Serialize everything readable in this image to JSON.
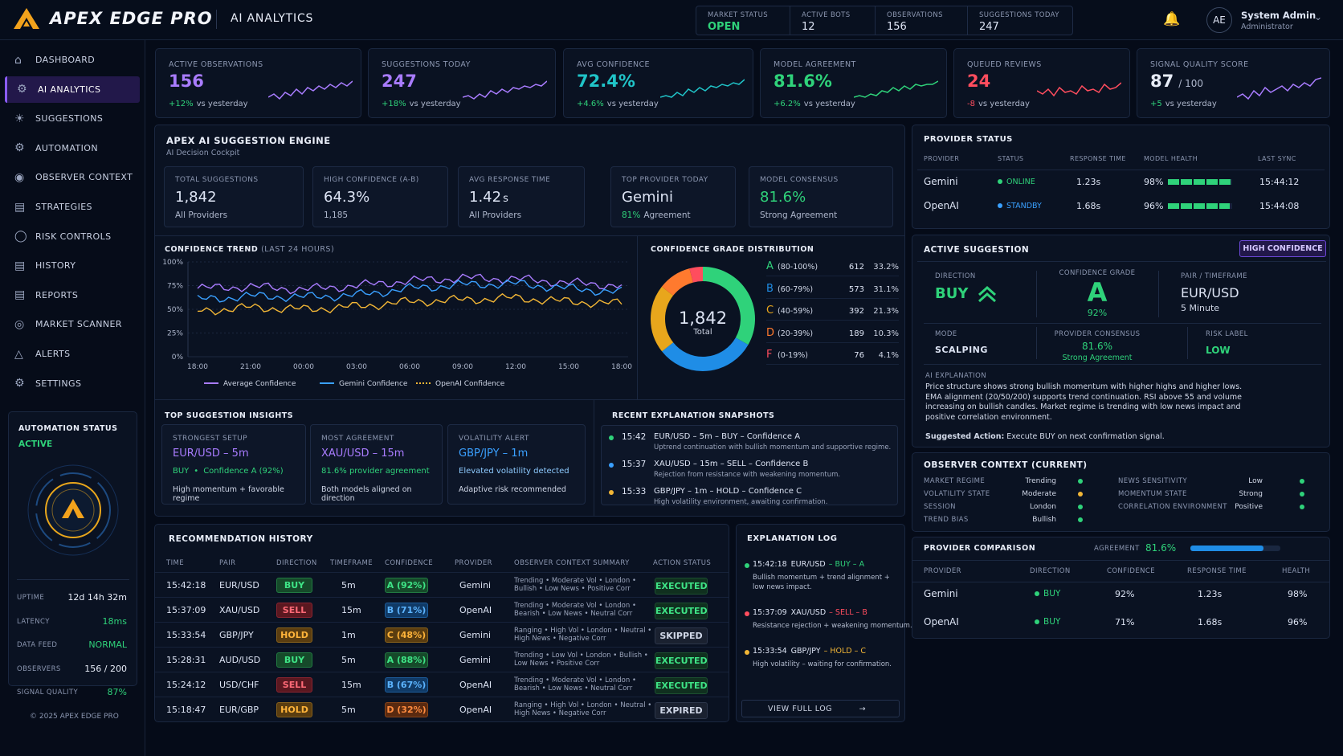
{
  "app": {
    "brand": "APEX EDGE PRO",
    "section": "AI ANALYTICS"
  },
  "topstats": [
    {
      "label": "MARKET STATUS",
      "value": "OPEN"
    },
    {
      "label": "ACTIVE BOTS",
      "value": "12"
    },
    {
      "label": "OBSERVATIONS",
      "value": "156"
    },
    {
      "label": "SUGGESTIONS TODAY",
      "value": "247"
    }
  ],
  "user": {
    "initials": "AE",
    "name": "System Admin",
    "role": "Administrator"
  },
  "nav": [
    {
      "label": "DASHBOARD",
      "icon": "home-icon"
    },
    {
      "label": "AI ANALYTICS",
      "icon": "brain-icon"
    },
    {
      "label": "SUGGESTIONS",
      "icon": "lightbulb-icon"
    },
    {
      "label": "AUTOMATION",
      "icon": "gear-icon"
    },
    {
      "label": "OBSERVER CONTEXT",
      "icon": "observer-icon"
    },
    {
      "label": "STRATEGIES",
      "icon": "chart-icon"
    },
    {
      "label": "RISK CONTROLS",
      "icon": "shield-icon"
    },
    {
      "label": "HISTORY",
      "icon": "history-icon"
    },
    {
      "label": "REPORTS",
      "icon": "report-icon"
    },
    {
      "label": "MARKET SCANNER",
      "icon": "scanner-icon"
    },
    {
      "label": "ALERTS",
      "icon": "bell-icon"
    },
    {
      "label": "SETTINGS",
      "icon": "settings-icon"
    }
  ],
  "automation": {
    "title": "AUTOMATION STATUS",
    "state": "ACTIVE",
    "rows": [
      {
        "label": "UPTIME",
        "value": "12d 14h 32m"
      },
      {
        "label": "LATENCY",
        "value": "18ms"
      },
      {
        "label": "DATA FEED",
        "value": "NORMAL"
      },
      {
        "label": "OBSERVERS",
        "value": "156 / 200"
      },
      {
        "label": "SIGNAL QUALITY",
        "value": "87%"
      }
    ]
  },
  "copyright": "© 2025 APEX EDGE PRO",
  "kpis": [
    {
      "label": "ACTIVE OBSERVATIONS",
      "value": "156",
      "delta": "+12%",
      "note": "vs yesterday",
      "color": "#a97cff"
    },
    {
      "label": "SUGGESTIONS TODAY",
      "value": "247",
      "delta": "+18%",
      "note": "vs yesterday",
      "color": "#a97cff"
    },
    {
      "label": "AVG CONFIDENCE",
      "value": "72.4%",
      "delta": "+4.6%",
      "note": "vs yesterday",
      "color": "#20c4c8"
    },
    {
      "label": "MODEL AGREEMENT",
      "value": "81.6%",
      "delta": "+6.2%",
      "note": "vs yesterday",
      "color": "#2fd27a"
    },
    {
      "label": "QUEUED REVIEWS",
      "value": "24",
      "delta": "-8",
      "note": "vs yesterday",
      "color": "#ff4d5e"
    },
    {
      "label": "SIGNAL QUALITY SCORE",
      "value": "87",
      "suffix": "/ 100",
      "delta": "+5",
      "note": "vs yesterday",
      "color": "#a97cff"
    }
  ],
  "engine": {
    "title": "APEX AI SUGGESTION ENGINE",
    "subtitle": "AI Decision Cockpit",
    "cards": [
      {
        "label": "TOTAL SUGGESTIONS",
        "value": "1,842",
        "sub": "All Providers"
      },
      {
        "label": "HIGH CONFIDENCE (A-B)",
        "value": "64.3%",
        "sub": "1,185"
      },
      {
        "label": "AVG RESPONSE TIME",
        "value": "1.42",
        "unit": "s",
        "sub": "All Providers"
      },
      {
        "label": "TOP PROVIDER TODAY",
        "value": "Gemini",
        "subA": "81%",
        "subB": "Agreement"
      },
      {
        "label": "MODEL CONSENSUS",
        "value": "81.6%",
        "sub": "Strong Agreement"
      }
    ]
  },
  "trend": {
    "title": "CONFIDENCE TREND",
    "range": "(LAST 24 HOURS)",
    "yticks": [
      "100%",
      "75%",
      "50%",
      "25%",
      "0%"
    ],
    "xticks": [
      "18:00",
      "21:00",
      "00:00",
      "03:00",
      "06:00",
      "09:00",
      "12:00",
      "15:00",
      "18:00"
    ],
    "legend": [
      "Average Confidence",
      "Gemini Confidence",
      "OpenAI Confidence"
    ]
  },
  "chart_data": {
    "type": "line",
    "ylim": [
      0,
      100
    ],
    "x": [
      "18:00",
      "21:00",
      "00:00",
      "03:00",
      "06:00",
      "09:00",
      "12:00",
      "15:00",
      "18:00"
    ],
    "series": [
      {
        "name": "Average Confidence",
        "color": "#a97cff",
        "values": [
          72,
          74,
          71,
          75,
          80,
          83,
          82,
          78,
          75
        ]
      },
      {
        "name": "Gemini Confidence",
        "color": "#3aa0ff",
        "values": [
          60,
          64,
          63,
          65,
          72,
          76,
          77,
          72,
          68
        ]
      },
      {
        "name": "OpenAI Confidence",
        "color": "#f2b636",
        "values": [
          48,
          52,
          50,
          53,
          58,
          60,
          62,
          58,
          56
        ]
      }
    ]
  },
  "grades": {
    "title": "CONFIDENCE GRADE DISTRIBUTION",
    "total": "1,842",
    "total_label": "Total",
    "items": [
      {
        "grade": "A",
        "range": "(80-100%)",
        "count": "612",
        "pct": "33.2%",
        "color": "#2fd27a",
        "value": 612
      },
      {
        "grade": "B",
        "range": "(60-79%)",
        "count": "573",
        "pct": "31.1%",
        "color": "#1f8de6",
        "value": 573
      },
      {
        "grade": "C",
        "range": "(40-59%)",
        "count": "392",
        "pct": "21.3%",
        "color": "#e8a61c",
        "value": 392
      },
      {
        "grade": "D",
        "range": "(20-39%)",
        "count": "189",
        "pct": "10.3%",
        "color": "#ff7a2e",
        "value": 189
      },
      {
        "grade": "F",
        "range": "(0-19%)",
        "count": "76",
        "pct": "4.1%",
        "color": "#ff4d5e",
        "value": 76
      }
    ]
  },
  "insights": {
    "title": "TOP SUGGESTION INSIGHTS",
    "cards": [
      {
        "label": "STRONGEST SETUP",
        "head": "EUR/USD – 5m",
        "l1a": "BUY",
        "l1b": "Confidence A (92%)",
        "l2": "High momentum + favorable regime"
      },
      {
        "label": "MOST AGREEMENT",
        "head": "XAU/USD – 15m",
        "l1": "81.6% provider agreement",
        "l2": "Both models aligned on direction"
      },
      {
        "label": "VOLATILITY ALERT",
        "head": "GBP/JPY – 1m",
        "l1": "Elevated volatility detected",
        "l2": "Adaptive risk recommended"
      }
    ]
  },
  "snapshots": {
    "title": "RECENT EXPLANATION SNAPSHOTS",
    "items": [
      {
        "time": "15:42",
        "head": "EUR/USD – 5m – BUY – Confidence A",
        "desc": "Uptrend continuation with bullish momentum and supportive regime.",
        "color": "#2fd27a"
      },
      {
        "time": "15:37",
        "head": "XAU/USD – 15m – SELL – Confidence B",
        "desc": "Rejection from resistance with weakening momentum.",
        "color": "#3aa0ff"
      },
      {
        "time": "15:33",
        "head": "GBP/JPY – 1m – HOLD – Confidence C",
        "desc": "High volatility environment, awaiting confirmation.",
        "color": "#f2b636"
      }
    ]
  },
  "history": {
    "title": "RECOMMENDATION HISTORY",
    "columns": [
      "TIME",
      "PAIR",
      "DIRECTION",
      "TIMEFRAME",
      "CONFIDENCE",
      "PROVIDER",
      "OBSERVER CONTEXT SUMMARY",
      "ACTION STATUS"
    ],
    "rows": [
      {
        "time": "15:42:18",
        "pair": "EUR/USD",
        "dir": "BUY",
        "tf": "5m",
        "conf": "A (92%)",
        "cc": "c-a",
        "prov": "Gemini",
        "c1": "Trending • Moderate Vol • London •",
        "c2": "Bullish • Low News • Positive Corr",
        "status": "EXECUTED"
      },
      {
        "time": "15:37:09",
        "pair": "XAU/USD",
        "dir": "SELL",
        "tf": "15m",
        "conf": "B (71%)",
        "cc": "c-b",
        "prov": "OpenAI",
        "c1": "Trending • Moderate Vol • London •",
        "c2": "Bearish • Low News • Neutral Corr",
        "status": "EXECUTED"
      },
      {
        "time": "15:33:54",
        "pair": "GBP/JPY",
        "dir": "HOLD",
        "tf": "1m",
        "conf": "C (48%)",
        "cc": "c-c",
        "prov": "Gemini",
        "c1": "Ranging • High Vol • London • Neutral •",
        "c2": "High News • Negative Corr",
        "status": "SKIPPED"
      },
      {
        "time": "15:28:31",
        "pair": "AUD/USD",
        "dir": "BUY",
        "tf": "5m",
        "conf": "A (88%)",
        "cc": "c-a",
        "prov": "Gemini",
        "c1": "Trending • Low Vol • London • Bullish •",
        "c2": "Low News • Positive Corr",
        "status": "EXECUTED"
      },
      {
        "time": "15:24:12",
        "pair": "USD/CHF",
        "dir": "SELL",
        "tf": "15m",
        "conf": "B (67%)",
        "cc": "c-b",
        "prov": "OpenAI",
        "c1": "Trending • Moderate Vol • London •",
        "c2": "Bearish • Low News • Neutral Corr",
        "status": "EXECUTED"
      },
      {
        "time": "15:18:47",
        "pair": "EUR/GBP",
        "dir": "HOLD",
        "tf": "5m",
        "conf": "D (32%)",
        "cc": "c-d",
        "prov": "OpenAI",
        "c1": "Ranging • High Vol • London • Neutral •",
        "c2": "High News • Negative Corr",
        "status": "EXPIRED"
      }
    ]
  },
  "log": {
    "title": "EXPLANATION LOG",
    "button": "VIEW FULL LOG",
    "items": [
      {
        "time": "15:42:18",
        "pair": "EUR/USD",
        "act": "– BUY – A",
        "l1": "Bullish momentum + trend alignment +",
        "l2": "low news impact.",
        "color": "#2fd27a"
      },
      {
        "time": "15:37:09",
        "pair": "XAU/USD",
        "act": "– SELL – B",
        "l1": "Resistance rejection + weakening momentum.",
        "l2": "",
        "color": "#ff4d5e"
      },
      {
        "time": "15:33:54",
        "pair": "GBP/JPY",
        "act": "– HOLD – C",
        "l1": "High volatility – waiting for confirmation.",
        "l2": "",
        "color": "#f2b636"
      }
    ]
  },
  "provider_status": {
    "title": "PROVIDER STATUS",
    "columns": [
      "PROVIDER",
      "STATUS",
      "RESPONSE TIME",
      "MODEL HEALTH",
      "LAST SYNC"
    ],
    "rows": [
      {
        "name": "Gemini",
        "status": "ONLINE",
        "resp": "1.23s",
        "health": "98%",
        "health_value": 98,
        "sync": "15:44:12",
        "color": "#2fd27a"
      },
      {
        "name": "OpenAI",
        "status": "STANDBY",
        "resp": "1.68s",
        "health": "96%",
        "health_value": 96,
        "sync": "15:44:08",
        "color": "#3aa0ff"
      }
    ]
  },
  "active": {
    "title": "ACTIVE SUGGESTION",
    "badge": "HIGH CONFIDENCE",
    "direction_label": "DIRECTION",
    "direction": "BUY",
    "grade_label": "CONFIDENCE GRADE",
    "grade": "A",
    "grade_pct": "92%",
    "pair_label": "PAIR / TIMEFRAME",
    "pair": "EUR/USD",
    "tf": "5 Minute",
    "mode_label": "MODE",
    "mode": "SCALPING",
    "consensus_label": "PROVIDER CONSENSUS",
    "consensus": "81.6%",
    "consensus_sub": "Strong Agreement",
    "risk_label": "RISK LABEL",
    "risk": "LOW",
    "expl_label": "AI EXPLANATION",
    "expl": "Price structure shows strong bullish momentum with higher highs and higher lows. EMA alignment (20/50/200) supports trend continuation. RSI above 55 and volume increasing on bullish candles. Market regime is trending with low news impact and positive correlation environment.",
    "action_label": "Suggested Action:",
    "action": "Execute BUY on next confirmation signal."
  },
  "observer": {
    "title": "OBSERVER CONTEXT (CURRENT)",
    "left": [
      {
        "k": "MARKET REGIME",
        "v": "Trending",
        "color": "#2fd27a"
      },
      {
        "k": "VOLATILITY STATE",
        "v": "Moderate",
        "color": "#f2b636"
      },
      {
        "k": "SESSION",
        "v": "London",
        "color": "#2fd27a"
      },
      {
        "k": "TREND BIAS",
        "v": "Bullish",
        "color": "#2fd27a"
      }
    ],
    "right": [
      {
        "k": "NEWS SENSITIVITY",
        "v": "Low",
        "color": "#2fd27a"
      },
      {
        "k": "MOMENTUM STATE",
        "v": "Strong",
        "color": "#2fd27a"
      },
      {
        "k": "CORRELATION ENVIRONMENT",
        "v": "Positive",
        "color": "#2fd27a"
      }
    ]
  },
  "comparison": {
    "title": "PROVIDER COMPARISON",
    "agreement_label": "AGREEMENT",
    "agreement": "81.6%",
    "agreement_value": 81.6,
    "columns": [
      "PROVIDER",
      "DIRECTION",
      "CONFIDENCE",
      "RESPONSE TIME",
      "HEALTH"
    ],
    "rows": [
      {
        "name": "Gemini",
        "dir": "BUY",
        "conf": "92%",
        "resp": "1.23s",
        "health": "98%"
      },
      {
        "name": "OpenAI",
        "dir": "BUY",
        "conf": "71%",
        "resp": "1.68s",
        "health": "96%"
      }
    ]
  }
}
